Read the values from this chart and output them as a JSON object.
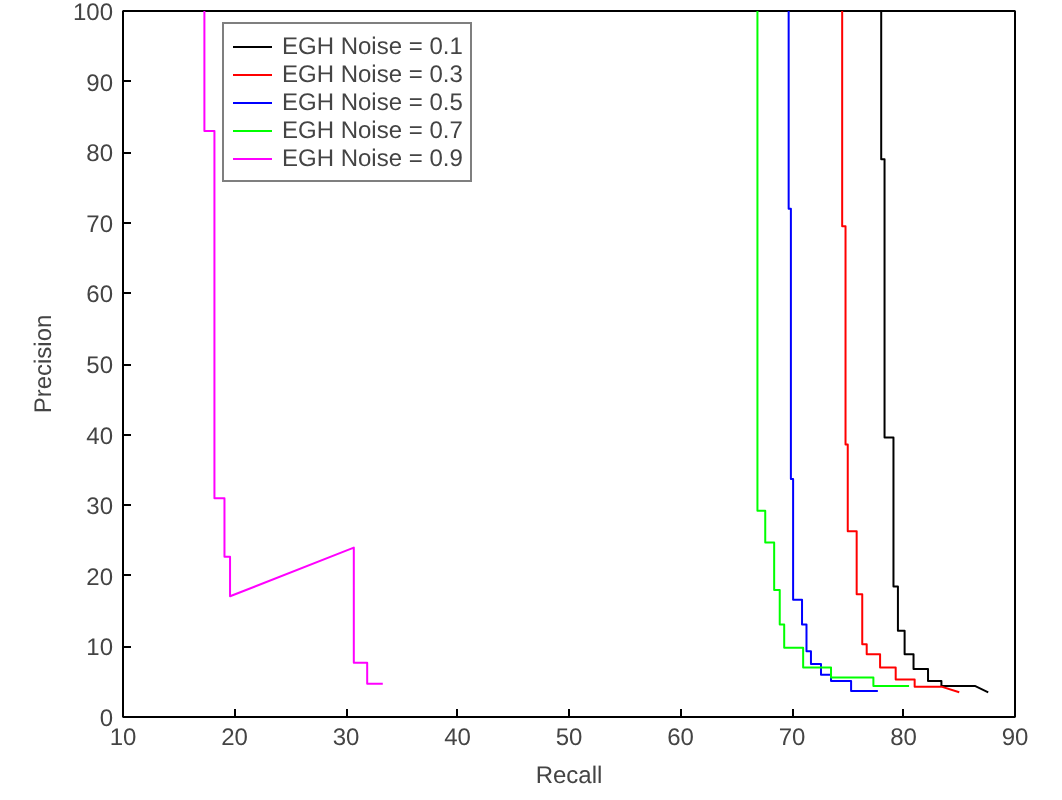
{
  "chart_data": {
    "type": "line",
    "xlabel": "Recall",
    "ylabel": "Precision",
    "xlim": [
      10,
      90
    ],
    "ylim": [
      0,
      100
    ],
    "xticks": [
      10,
      20,
      30,
      40,
      50,
      60,
      70,
      80,
      90
    ],
    "yticks": [
      0,
      10,
      20,
      30,
      40,
      50,
      60,
      70,
      80,
      90,
      100
    ],
    "legend": "top left",
    "grid": false,
    "series": [
      {
        "name": "EGH Noise = 0.1",
        "color": "#000000",
        "x": [
          78.0,
          78.0,
          78.3,
          78.3,
          79.1,
          79.1,
          79.5,
          79.5,
          80.1,
          80.1,
          80.9,
          80.9,
          82.2,
          82.2,
          83.4,
          83.4,
          86.4,
          87.6
        ],
        "values": [
          100,
          79,
          79,
          39.6,
          39.6,
          18.5,
          18.5,
          12.2,
          12.2,
          8.9,
          8.9,
          6.8,
          6.8,
          5.1,
          5.1,
          4.4,
          4.4,
          3.5
        ]
      },
      {
        "name": "EGH Noise = 0.3",
        "color": "#ff0000",
        "x": [
          74.5,
          74.5,
          74.8,
          74.8,
          75.0,
          75.0,
          75.8,
          75.8,
          76.3,
          76.3,
          76.7,
          76.7,
          77.9,
          77.9,
          79.3,
          79.3,
          81.0,
          81.0,
          83.4,
          85.0
        ],
        "values": [
          100,
          69.5,
          69.5,
          38.6,
          38.6,
          26.3,
          26.3,
          17.4,
          17.4,
          10.3,
          10.3,
          8.9,
          8.9,
          7,
          7,
          5.3,
          5.3,
          4.3,
          4.3,
          3.5
        ]
      },
      {
        "name": "EGH Noise = 0.5",
        "color": "#0000ff",
        "x": [
          69.7,
          69.7,
          69.9,
          69.9,
          70.1,
          70.1,
          70.9,
          70.9,
          71.3,
          71.3,
          71.7,
          71.7,
          72.6,
          72.6,
          73.5,
          73.5,
          75.3,
          75.3,
          77.7
        ],
        "values": [
          100,
          72,
          72,
          33.7,
          33.7,
          16.6,
          16.6,
          13.1,
          13.1,
          9.3,
          9.3,
          7.5,
          7.5,
          6,
          6,
          5.1,
          5.1,
          3.7,
          3.7
        ]
      },
      {
        "name": "EGH Noise = 0.7",
        "color": "#00ff00",
        "x": [
          66.9,
          66.9,
          67.6,
          67.6,
          68.4,
          68.4,
          68.9,
          68.9,
          69.3,
          69.3,
          71.0,
          71.0,
          73.5,
          73.5,
          77.3,
          77.3,
          80.5
        ],
        "values": [
          100,
          29.2,
          29.2,
          24.7,
          24.7,
          18,
          18,
          13.1,
          13.1,
          9.8,
          9.8,
          7,
          7,
          5.6,
          5.6,
          4.4,
          4.4
        ]
      },
      {
        "name": "EGH Noise = 0.9",
        "color": "#ff00ff",
        "x": [
          17.3,
          17.3,
          18.2,
          18.2,
          19.1,
          19.1,
          19.6,
          19.6,
          30.7,
          30.7,
          31.9,
          31.9,
          33.3
        ],
        "values": [
          100,
          83,
          83,
          31,
          31,
          22.7,
          22.7,
          17.1,
          24,
          7.7,
          7.7,
          4.7,
          4.7
        ]
      }
    ]
  }
}
